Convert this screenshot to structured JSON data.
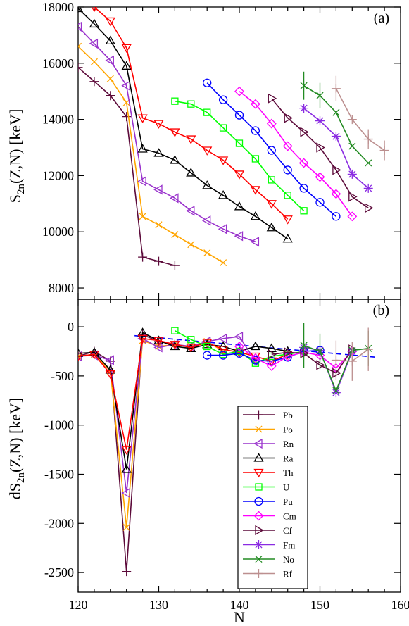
{
  "chart_data": [
    {
      "panel_label": "(a)",
      "type": "line",
      "ylabel": "S",
      "ylabel_sub": "2n",
      "ylabel_rest": "(Z,N)  [keV]",
      "xlim": [
        120,
        160
      ],
      "ylim": [
        7600,
        18000
      ],
      "x_ticks_minor": [
        122,
        124,
        126,
        128,
        132,
        134,
        136,
        138,
        142,
        144,
        146,
        148,
        152,
        154,
        156,
        158
      ],
      "y_ticks": [
        8000,
        10000,
        12000,
        14000,
        16000,
        18000
      ],
      "y_tick_labels": [
        "8000",
        "10000",
        "12000",
        "14000",
        "16000",
        "18000"
      ],
      "series": [
        {
          "name": "Pb",
          "color": "#5c0a3a",
          "marker": "plus",
          "x": [
            120,
            122,
            124,
            126,
            128,
            130,
            132
          ],
          "y": [
            15850,
            15350,
            14850,
            14100,
            9100,
            8950,
            8800
          ]
        },
        {
          "name": "Po",
          "color": "#ffa500",
          "marker": "x",
          "x": [
            120,
            122,
            124,
            126,
            128,
            130,
            132,
            134,
            136,
            138
          ],
          "y": [
            16600,
            16050,
            15450,
            14600,
            10550,
            10250,
            9900,
            9550,
            9250,
            8900
          ]
        },
        {
          "name": "Rn",
          "color": "#9932cc",
          "marker": "tri-left",
          "x": [
            120,
            122,
            124,
            126,
            128,
            130,
            132,
            134,
            136,
            138,
            140,
            142
          ],
          "y": [
            17300,
            16700,
            16100,
            15200,
            11800,
            11500,
            11200,
            10750,
            10400,
            10100,
            9850,
            9650
          ]
        },
        {
          "name": "Ra",
          "color": "#000000",
          "marker": "tri-up",
          "x": [
            120,
            122,
            124,
            126,
            128,
            130,
            132,
            134,
            136,
            138,
            140,
            142,
            144,
            146
          ],
          "y": [
            17950,
            17400,
            16800,
            15900,
            12950,
            12800,
            12550,
            12100,
            11650,
            11300,
            10900,
            10550,
            10150,
            9750
          ]
        },
        {
          "name": "Th",
          "color": "#ff0000",
          "marker": "tri-down",
          "x": [
            122,
            124,
            126,
            128,
            130,
            132,
            134,
            136,
            138,
            140,
            142,
            144,
            146
          ],
          "y": [
            18000,
            17500,
            16550,
            14050,
            13850,
            13550,
            13300,
            12900,
            12550,
            12050,
            11500,
            11000,
            10450
          ]
        },
        {
          "name": "U",
          "color": "#00ff00",
          "marker": "square",
          "x": [
            132,
            134,
            136,
            138,
            140,
            142,
            144,
            146,
            148
          ],
          "y": [
            14650,
            14550,
            14250,
            13700,
            13150,
            12600,
            11850,
            11300,
            10750
          ]
        },
        {
          "name": "Pu",
          "color": "#0000ff",
          "marker": "circle",
          "x": [
            136,
            138,
            140,
            142,
            144,
            146,
            148,
            150,
            152
          ],
          "y": [
            15300,
            14700,
            14150,
            13600,
            12900,
            12200,
            11550,
            11050,
            10550
          ]
        },
        {
          "name": "Cm",
          "color": "#ff00ff",
          "marker": "diamond",
          "x": [
            140,
            142,
            144,
            146,
            148,
            150,
            152,
            154
          ],
          "y": [
            15000,
            14550,
            13850,
            13050,
            12450,
            11950,
            11350,
            10550
          ]
        },
        {
          "name": "Cf",
          "color": "#5c0a3a",
          "marker": "tri-right",
          "x": [
            144,
            146,
            148,
            150,
            152,
            154,
            156
          ],
          "y": [
            14750,
            14050,
            13550,
            13000,
            12200,
            11250,
            10850
          ]
        },
        {
          "name": "Fm",
          "color": "#8a2be2",
          "marker": "star",
          "x": [
            148,
            150,
            152,
            154,
            156
          ],
          "y": [
            14400,
            13950,
            13400,
            12050,
            11550
          ]
        },
        {
          "name": "No",
          "color": "#228b22",
          "marker": "x",
          "x": [
            148,
            150,
            152,
            154,
            156
          ],
          "y": [
            15200,
            14850,
            14250,
            13050,
            12450
          ],
          "err": [
            500,
            450,
            0,
            0,
            0
          ]
        },
        {
          "name": "Rf",
          "color": "#bc8f8f",
          "marker": "plus",
          "x": [
            152,
            154,
            156,
            158
          ],
          "y": [
            15100,
            14000,
            13300,
            12900
          ],
          "err": [
            450,
            0,
            350,
            350
          ]
        }
      ]
    },
    {
      "panel_label": "(b)",
      "type": "line",
      "ylabel": "dS",
      "ylabel_sub": "2n",
      "ylabel_rest": "(Z,N)  [keV]",
      "xlabel": "N",
      "xlim": [
        120,
        160
      ],
      "ylim": [
        -2700,
        280
      ],
      "x_ticks": [
        120,
        130,
        140,
        150,
        160
      ],
      "x_tick_labels": [
        "120",
        "130",
        "140",
        "150",
        "160"
      ],
      "y_ticks": [
        0,
        -500,
        -1000,
        -1500,
        -2000,
        -2500
      ],
      "y_tick_labels": [
        "0",
        "-500",
        "-1000",
        "-1500",
        "-2000",
        "-2500"
      ],
      "trend_line": {
        "color": "#0000ff",
        "x": [
          127,
          157
        ],
        "y": [
          -90,
          -310
        ]
      },
      "series": [
        {
          "name": "Pb",
          "color": "#5c0a3a",
          "marker": "plus",
          "x": [
            120,
            122,
            124,
            126,
            128,
            130,
            132
          ],
          "y": [
            -300,
            -250,
            -350,
            -2490,
            -80,
            -150,
            -180
          ]
        },
        {
          "name": "Po",
          "color": "#ffa500",
          "marker": "x",
          "x": [
            120,
            122,
            124,
            126,
            128,
            130,
            132,
            134,
            136,
            138
          ],
          "y": [
            -300,
            -280,
            -450,
            -2040,
            -140,
            -200,
            -180,
            -200,
            -150,
            -250
          ]
        },
        {
          "name": "Rn",
          "color": "#9932cc",
          "marker": "tri-left",
          "x": [
            120,
            122,
            124,
            126,
            128,
            130,
            132,
            134,
            136,
            138,
            140,
            142
          ],
          "y": [
            -300,
            -290,
            -340,
            -1690,
            -120,
            -210,
            -180,
            -200,
            -150,
            -120,
            -100,
            -350
          ]
        },
        {
          "name": "Ra",
          "color": "#000000",
          "marker": "tri-up",
          "x": [
            120,
            122,
            124,
            126,
            128,
            130,
            132,
            134,
            136,
            138,
            140,
            142,
            144,
            146
          ],
          "y": [
            -270,
            -260,
            -440,
            -1450,
            -60,
            -140,
            -200,
            -220,
            -180,
            -200,
            -250,
            -200,
            -220,
            -250
          ]
        },
        {
          "name": "Th",
          "color": "#ff0000",
          "marker": "tri-down",
          "x": [
            120,
            122,
            124,
            126,
            128,
            130,
            132,
            134,
            136,
            138,
            140,
            142,
            144,
            146
          ],
          "y": [
            -300,
            -280,
            -480,
            -1250,
            -120,
            -140,
            -180,
            -210,
            -160,
            -230,
            -260,
            -300,
            -350,
            -280
          ]
        },
        {
          "name": "U",
          "color": "#00ff00",
          "marker": "square",
          "x": [
            132,
            134,
            136,
            138,
            140,
            142,
            144,
            146,
            148
          ],
          "y": [
            -40,
            -130,
            -200,
            -280,
            -250,
            -370,
            -300,
            -280,
            -250
          ]
        },
        {
          "name": "Pu",
          "color": "#0000ff",
          "marker": "circle",
          "x": [
            136,
            138,
            140,
            142,
            144,
            146,
            148,
            150
          ],
          "y": [
            -290,
            -290,
            -270,
            -340,
            -350,
            -310,
            -250,
            -240
          ]
        },
        {
          "name": "Cm",
          "color": "#ff00ff",
          "marker": "diamond",
          "x": [
            140,
            142,
            144,
            146,
            148,
            150,
            152,
            154
          ],
          "y": [
            -200,
            -320,
            -400,
            -300,
            -260,
            -290,
            -420,
            -250
          ]
        },
        {
          "name": "Cf",
          "color": "#5c0a3a",
          "marker": "tri-right",
          "x": [
            144,
            146,
            148,
            150,
            152,
            154
          ],
          "y": [
            -280,
            -260,
            -270,
            -390,
            -470,
            -230
          ]
        },
        {
          "name": "Fm",
          "color": "#8a2be2",
          "marker": "star",
          "x": [
            148,
            150,
            152,
            154
          ],
          "y": [
            -210,
            -240,
            -670,
            -250
          ]
        },
        {
          "name": "No",
          "color": "#228b22",
          "marker": "x",
          "x": [
            148,
            150,
            152,
            154,
            156
          ],
          "y": [
            -190,
            -250,
            -650,
            -240,
            -220
          ],
          "err": [
            230,
            180,
            0,
            0,
            180
          ]
        },
        {
          "name": "Rf",
          "color": "#bc8f8f",
          "marker": "plus",
          "x": [
            152,
            154,
            156
          ],
          "y": [
            -340,
            -350,
            -230
          ],
          "err": [
            200,
            200,
            220
          ]
        }
      ]
    }
  ]
}
